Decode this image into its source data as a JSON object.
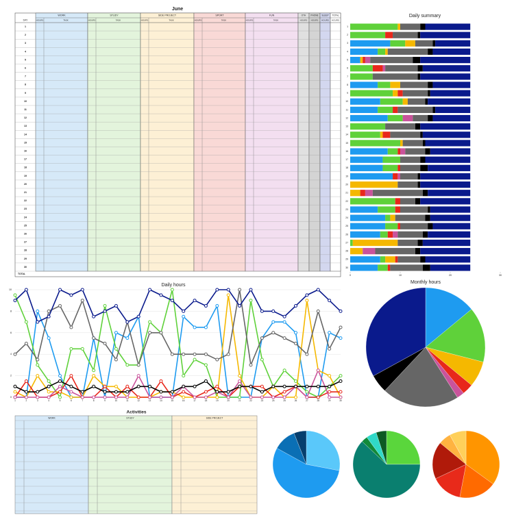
{
  "table": {
    "title": "June",
    "day_header": "DAY",
    "groups": [
      "WORK",
      "STUDY",
      "SIDE PROJECT",
      "SPORT",
      "FUN"
    ],
    "sub_hours": "HOURS",
    "sub_task": "TASK",
    "extras": [
      "OTH",
      "PHONE",
      "SLEEP",
      "TOTAL"
    ],
    "days": [
      1,
      2,
      3,
      4,
      5,
      6,
      7,
      8,
      9,
      10,
      11,
      12,
      13,
      14,
      15,
      16,
      17,
      18,
      19,
      20,
      21,
      22,
      23,
      24,
      25,
      26,
      27,
      28,
      29,
      30
    ],
    "total": "TOTAL"
  },
  "activities": {
    "title": "Activities",
    "columns": [
      "WORK",
      "STUDY",
      "SIDE PROJECT"
    ]
  },
  "chart_data": [
    {
      "type": "bar",
      "orientation": "horizontal",
      "stacked": true,
      "title": "Daily summary",
      "categories": [
        1,
        2,
        3,
        4,
        5,
        6,
        7,
        8,
        9,
        10,
        11,
        12,
        13,
        14,
        15,
        16,
        17,
        18,
        19,
        20,
        21,
        22,
        23,
        24,
        25,
        26,
        27,
        28,
        29,
        30
      ],
      "xlim": [
        0,
        30
      ],
      "xticks": [
        0,
        10,
        20,
        30
      ],
      "series": [
        {
          "color": "#1e9bf0",
          "values": [
            0,
            0,
            8,
            5.5,
            2,
            0,
            0,
            5.5,
            0,
            6,
            5.5,
            7.5,
            0,
            0,
            0,
            7.5,
            6.5,
            6.5,
            8.5,
            0,
            0,
            0,
            5.5,
            7,
            7,
            6,
            0,
            0,
            6,
            5.5
          ]
        },
        {
          "color": "#5fd13a",
          "values": [
            9.5,
            7,
            3,
            1.5,
            0,
            4.5,
            4.5,
            2.5,
            8.5,
            4.5,
            3,
            3,
            7,
            6,
            10,
            2,
            3.5,
            3,
            0,
            0,
            0,
            9,
            3.5,
            1,
            2.5,
            1.5,
            0.5,
            0,
            1,
            2
          ]
        },
        {
          "color": "#f5b800",
          "values": [
            0.5,
            0,
            2,
            0.5,
            0.5,
            0,
            0,
            2,
            1,
            1,
            0,
            0,
            0,
            0.5,
            0.5,
            0,
            0,
            0,
            0,
            9.5,
            2,
            0,
            0,
            1,
            0,
            0,
            9,
            2.5,
            2,
            0
          ]
        },
        {
          "color": "#e8271b",
          "values": [
            0,
            1.5,
            0,
            0,
            0.5,
            2,
            0,
            0,
            1,
            0,
            1,
            0,
            0,
            1.5,
            0,
            0.5,
            0,
            0.5,
            1,
            0,
            1,
            1,
            1,
            0,
            0.5,
            1,
            0,
            0,
            0.5,
            0.5
          ]
        },
        {
          "color": "#c9539b",
          "values": [
            0,
            0,
            0,
            0,
            1,
            0.5,
            0,
            0,
            0,
            0,
            0,
            2,
            0,
            0,
            0,
            1,
            0,
            0,
            0.5,
            0,
            1.5,
            0,
            0,
            0,
            0,
            1,
            0,
            2.5,
            0,
            0
          ]
        },
        {
          "color": "#666666",
          "values": [
            4,
            5,
            3.5,
            8,
            8.5,
            6.5,
            9,
            5.5,
            5,
            3.5,
            7,
            3,
            6,
            6,
            4,
            4,
            4,
            4,
            3.5,
            4,
            10,
            3,
            5.5,
            6,
            5.5,
            5,
            4,
            8,
            4.5,
            6.5
          ]
        },
        {
          "color": "#000000",
          "values": [
            1,
            0.5,
            0.5,
            1,
            1.5,
            1,
            0.5,
            1,
            0.5,
            0.5,
            0.5,
            1,
            1,
            0.5,
            0.5,
            1,
            1,
            1.5,
            0.5,
            0.5,
            1,
            1,
            0.5,
            1,
            1,
            1,
            1,
            1,
            1,
            1.5
          ]
        },
        {
          "color": "#0a1a8c",
          "values": [
            9,
            10,
            7,
            7.5,
            10,
            9.5,
            10,
            7.5,
            8,
            8.5,
            7,
            7.5,
            10,
            9.5,
            9,
            8,
            9,
            8.5,
            10,
            10,
            8.5,
            10,
            8,
            8,
            7.5,
            8.5,
            9.5,
            10,
            9,
            8
          ]
        }
      ]
    },
    {
      "type": "line",
      "title": "Daily hours",
      "x": [
        1,
        2,
        3,
        4,
        5,
        6,
        7,
        8,
        9,
        10,
        11,
        12,
        13,
        14,
        15,
        16,
        17,
        18,
        19,
        20,
        21,
        22,
        23,
        24,
        25,
        26,
        27,
        28,
        29,
        30
      ],
      "xlim": [
        1,
        30
      ],
      "ylim": [
        0,
        10
      ],
      "yticks": [
        0,
        2,
        4,
        6,
        8,
        10
      ],
      "grid": true,
      "series": [
        {
          "color": "#1e9bf0",
          "values": [
            0,
            0,
            8,
            5.5,
            2,
            0,
            0,
            5.5,
            0,
            6,
            5.5,
            7.5,
            0,
            0,
            0,
            7.5,
            6.5,
            6.5,
            8.5,
            0,
            0,
            0,
            5.5,
            7,
            7,
            6,
            0,
            0,
            6,
            5.5
          ]
        },
        {
          "color": "#5fd13a",
          "values": [
            9.5,
            7,
            3,
            1.5,
            0,
            4.5,
            4.5,
            2.5,
            8.5,
            4.5,
            3,
            3,
            7,
            6,
            10,
            2,
            3.5,
            3,
            0,
            0,
            0,
            9,
            3.5,
            1,
            2.5,
            1.5,
            0.5,
            0,
            1,
            2
          ]
        },
        {
          "color": "#f5b800",
          "values": [
            0.5,
            0,
            2,
            0.5,
            0.5,
            0,
            0,
            2,
            1,
            1,
            0,
            0,
            0,
            0.5,
            0.5,
            0,
            0,
            0,
            0,
            9.5,
            2,
            0,
            0,
            1,
            0,
            0,
            9,
            2.5,
            2,
            0
          ]
        },
        {
          "color": "#e8271b",
          "values": [
            0,
            1.5,
            0,
            0,
            0.5,
            2,
            0,
            0,
            1,
            0,
            1,
            0,
            0,
            1.5,
            0,
            0.5,
            0,
            0.5,
            1,
            0,
            1,
            1,
            1,
            0,
            0.5,
            1,
            0,
            0,
            0.5,
            0.5
          ]
        },
        {
          "color": "#c9539b",
          "values": [
            0,
            0,
            0,
            0,
            1,
            0.5,
            0,
            0,
            0,
            0,
            0,
            2,
            0,
            0,
            0,
            1,
            0,
            0,
            0.5,
            0,
            1.5,
            0,
            0,
            0,
            0,
            1,
            0,
            2.5,
            0,
            0
          ]
        },
        {
          "color": "#666666",
          "values": [
            4,
            5,
            3.5,
            8,
            8.5,
            6.5,
            9,
            5.5,
            5,
            3.5,
            7,
            3,
            6,
            6,
            4,
            4,
            4,
            4,
            3.5,
            4,
            10,
            3,
            5.5,
            6,
            5.5,
            5,
            4,
            8,
            4.5,
            6.5
          ]
        },
        {
          "color": "#000000",
          "values": [
            1,
            0.5,
            0.5,
            1,
            1.5,
            1,
            0.5,
            1,
            0.5,
            0.5,
            0.5,
            1,
            1,
            0.5,
            0.5,
            1,
            1,
            1.5,
            0.5,
            0.5,
            1,
            1,
            0.5,
            1,
            1,
            1,
            1,
            1,
            1,
            1.5
          ]
        },
        {
          "color": "#0a1a8c",
          "values": [
            9,
            10,
            7,
            7.5,
            10,
            9.5,
            10,
            7.5,
            8,
            8.5,
            7,
            7.5,
            10,
            9.5,
            9,
            8,
            9,
            8.5,
            10,
            10,
            8.5,
            10,
            8,
            8,
            7.5,
            8.5,
            9.5,
            10,
            9,
            8
          ]
        }
      ]
    },
    {
      "type": "pie",
      "title": "Monthly hours",
      "values": [
        14,
        15,
        7,
        3,
        2,
        21,
        5,
        33
      ],
      "colors": [
        "#1e9bf0",
        "#5fd13a",
        "#f5b800",
        "#e8271b",
        "#c9539b",
        "#666666",
        "#000000",
        "#0a1a8c"
      ]
    },
    {
      "type": "pie",
      "values": [
        28,
        55,
        11,
        6
      ],
      "colors": [
        "#5ac8fa",
        "#1e9bf0",
        "#0a6fb5",
        "#063f6e"
      ]
    },
    {
      "type": "pie",
      "values": [
        25,
        62,
        3,
        5,
        5
      ],
      "colors": [
        "#5ad63c",
        "#0a7f6f",
        "#118a3a",
        "#30d9c8",
        "#0c5a23"
      ]
    },
    {
      "type": "pie",
      "values": [
        35,
        18,
        15,
        18,
        6,
        8
      ],
      "colors": [
        "#ff9500",
        "#ff6a00",
        "#e82a1a",
        "#b01a0a",
        "#ffb340",
        "#ffd05a"
      ]
    }
  ]
}
